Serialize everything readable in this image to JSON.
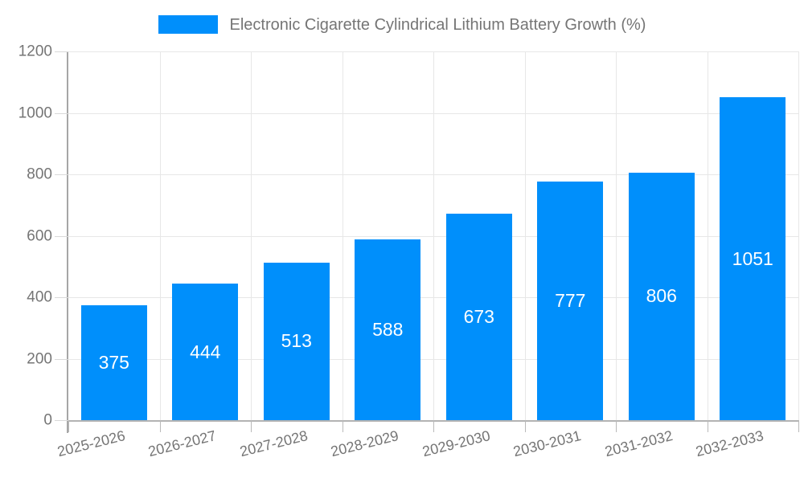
{
  "legend": {
    "label": "Electronic Cigarette Cylindrical Lithium Battery Growth (%)"
  },
  "colors": {
    "bar": "#008FFB",
    "axis_text": "#757575",
    "grid": "#e7e7e7",
    "axis_line": "#a6a6a6",
    "value_label": "#ffffff"
  },
  "chart_data": {
    "type": "bar",
    "title": "Electronic Cigarette Cylindrical Lithium Battery Growth (%)",
    "categories": [
      "2025-2026",
      "2026-2027",
      "2027-2028",
      "2028-2029",
      "2029-2030",
      "2030-2031",
      "2031-2032",
      "2032-2033"
    ],
    "series": [
      {
        "name": "Electronic Cigarette Cylindrical Lithium Battery Growth (%)",
        "values": [
          375,
          444,
          513,
          588,
          673,
          777,
          806,
          1051
        ]
      }
    ],
    "data_labels": [
      "375",
      "444",
      "513",
      "588",
      "673",
      "777",
      "806",
      "1051"
    ],
    "xlabel": "",
    "ylabel": "",
    "ylim": [
      0,
      1200
    ],
    "yticks": [
      0,
      200,
      400,
      600,
      800,
      1000,
      1200
    ],
    "grid": true,
    "legend_position": "top",
    "x_label_rotation_deg": -14
  }
}
